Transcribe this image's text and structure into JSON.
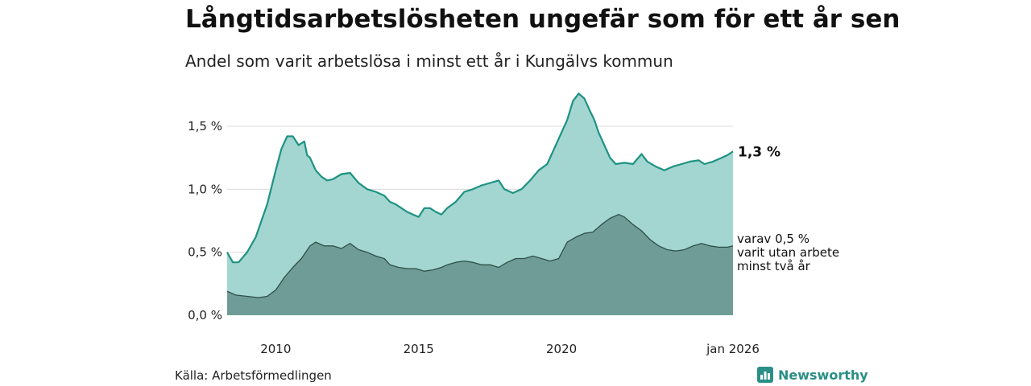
{
  "title": "Långtidsarbetslösheten ungefär som för ett år sen",
  "subtitle": "Andel som varit arbetslösa i minst ett år i Kungälvs kommun",
  "source": "Källa: Arbetsförmedlingen",
  "brand": "Newsworthy",
  "colors": {
    "series1_line": "#1e9283",
    "series1_fill": "#a3d6d0",
    "series2_line": "#2f4f49",
    "series2_fill": "#6f9c97",
    "grid": "#d9d9d9",
    "brand": "#2a8f86"
  },
  "chart_data": {
    "type": "area",
    "xlim": [
      2008.3,
      2026.0
    ],
    "ylim": [
      0,
      1.8
    ],
    "grid": true,
    "y_ticks": [
      {
        "value": 0.0,
        "label": "0,0 %"
      },
      {
        "value": 0.5,
        "label": "0,5 %"
      },
      {
        "value": 1.0,
        "label": "1,0 %"
      },
      {
        "value": 1.5,
        "label": "1,5 %"
      }
    ],
    "x_ticks": [
      {
        "value": 2010,
        "label": "2010"
      },
      {
        "value": 2015,
        "label": "2015"
      },
      {
        "value": 2020,
        "label": "2020"
      },
      {
        "value": 2026,
        "label": "jan 2026"
      }
    ],
    "end_label": "1,3 %",
    "series_label_lines": [
      "varav 0,5 %",
      "varit utan arbete",
      "minst två år"
    ],
    "series": [
      {
        "name": "",
        "x": [
          2008.3,
          2008.5,
          2008.7,
          2009.0,
          2009.3,
          2009.5,
          2009.7,
          2010.0,
          2010.2,
          2010.4,
          2010.6,
          2010.8,
          2011.0,
          2011.1,
          2011.2,
          2011.4,
          2011.6,
          2011.8,
          2012.0,
          2012.3,
          2012.6,
          2012.9,
          2013.2,
          2013.5,
          2013.8,
          2014.0,
          2014.2,
          2014.4,
          2014.6,
          2014.8,
          2015.0,
          2015.2,
          2015.4,
          2015.6,
          2015.8,
          2016.0,
          2016.3,
          2016.6,
          2016.9,
          2017.2,
          2017.5,
          2017.8,
          2018.0,
          2018.3,
          2018.6,
          2018.9,
          2019.2,
          2019.5,
          2019.7,
          2020.0,
          2020.2,
          2020.4,
          2020.6,
          2020.8,
          2021.0,
          2021.15,
          2021.3,
          2021.5,
          2021.7,
          2021.9,
          2022.2,
          2022.5,
          2022.8,
          2023.0,
          2023.3,
          2023.6,
          2023.9,
          2024.2,
          2024.5,
          2024.8,
          2025.0,
          2025.3,
          2025.6,
          2025.8,
          2026.0
        ],
        "values": [
          0.5,
          0.42,
          0.42,
          0.5,
          0.62,
          0.75,
          0.88,
          1.15,
          1.32,
          1.42,
          1.42,
          1.35,
          1.38,
          1.27,
          1.25,
          1.15,
          1.1,
          1.07,
          1.08,
          1.12,
          1.13,
          1.05,
          1.0,
          0.98,
          0.95,
          0.9,
          0.88,
          0.85,
          0.82,
          0.8,
          0.78,
          0.85,
          0.85,
          0.82,
          0.8,
          0.85,
          0.9,
          0.98,
          1.0,
          1.03,
          1.05,
          1.07,
          1.0,
          0.97,
          1.0,
          1.07,
          1.15,
          1.2,
          1.3,
          1.45,
          1.55,
          1.7,
          1.76,
          1.72,
          1.62,
          1.55,
          1.45,
          1.35,
          1.25,
          1.2,
          1.21,
          1.2,
          1.28,
          1.22,
          1.18,
          1.15,
          1.18,
          1.2,
          1.22,
          1.23,
          1.2,
          1.22,
          1.25,
          1.27,
          1.3
        ]
      },
      {
        "name": "",
        "x": [
          2008.3,
          2008.6,
          2009.0,
          2009.4,
          2009.7,
          2010.0,
          2010.3,
          2010.6,
          2010.9,
          2011.2,
          2011.4,
          2011.7,
          2012.0,
          2012.3,
          2012.6,
          2012.9,
          2013.2,
          2013.5,
          2013.8,
          2014.0,
          2014.3,
          2014.6,
          2014.9,
          2015.2,
          2015.5,
          2015.8,
          2016.0,
          2016.3,
          2016.6,
          2016.9,
          2017.2,
          2017.5,
          2017.8,
          2018.1,
          2018.4,
          2018.7,
          2019.0,
          2019.3,
          2019.6,
          2019.9,
          2020.2,
          2020.5,
          2020.8,
          2021.1,
          2021.4,
          2021.7,
          2022.0,
          2022.2,
          2022.5,
          2022.8,
          2023.1,
          2023.4,
          2023.7,
          2024.0,
          2024.3,
          2024.6,
          2024.9,
          2025.2,
          2025.5,
          2025.8,
          2026.0
        ],
        "values": [
          0.19,
          0.16,
          0.15,
          0.14,
          0.15,
          0.2,
          0.3,
          0.38,
          0.45,
          0.55,
          0.58,
          0.55,
          0.55,
          0.53,
          0.57,
          0.52,
          0.5,
          0.47,
          0.45,
          0.4,
          0.38,
          0.37,
          0.37,
          0.35,
          0.36,
          0.38,
          0.4,
          0.42,
          0.43,
          0.42,
          0.4,
          0.4,
          0.38,
          0.42,
          0.45,
          0.45,
          0.47,
          0.45,
          0.43,
          0.45,
          0.58,
          0.62,
          0.65,
          0.66,
          0.72,
          0.77,
          0.8,
          0.78,
          0.72,
          0.67,
          0.6,
          0.55,
          0.52,
          0.51,
          0.52,
          0.55,
          0.57,
          0.55,
          0.54,
          0.54,
          0.55
        ]
      }
    ]
  }
}
